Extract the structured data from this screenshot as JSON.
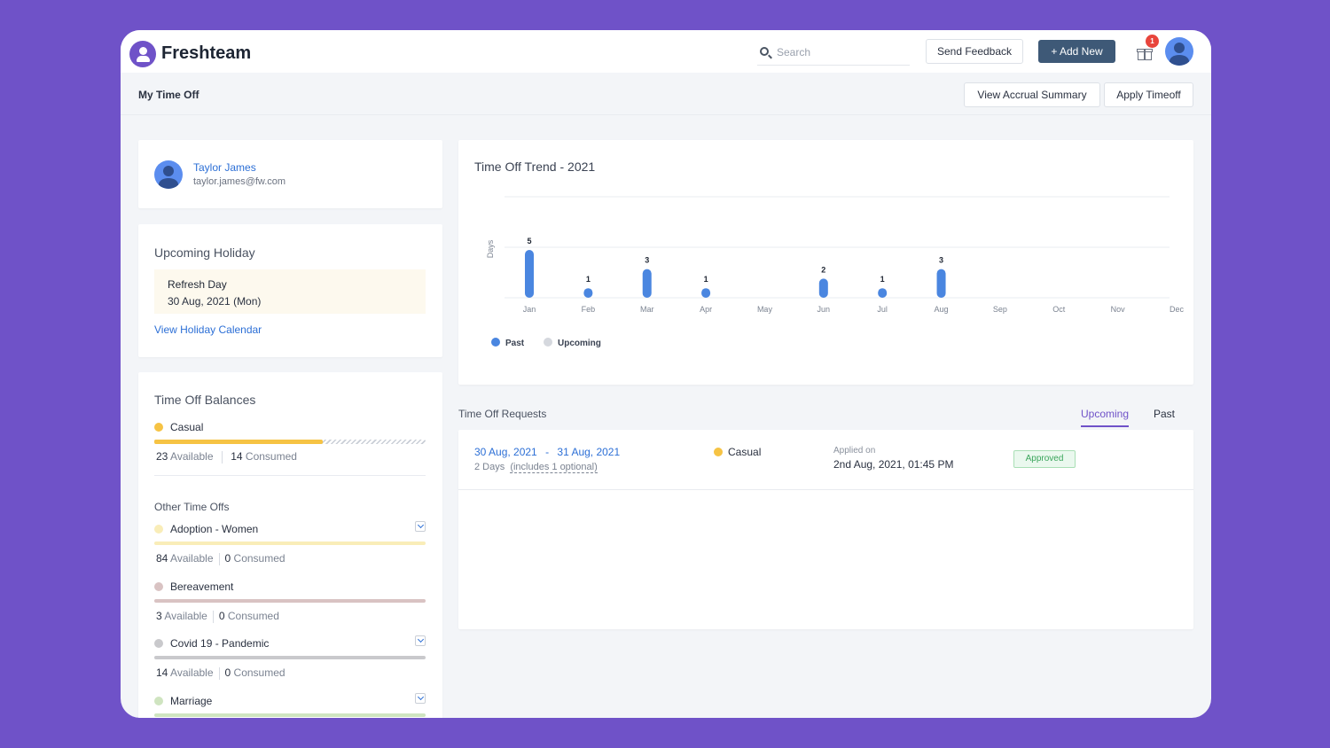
{
  "app": {
    "brand": "Freshteam"
  },
  "header": {
    "search_placeholder": "Search",
    "send_feedback": "Send Feedback",
    "add_new": "+ Add New",
    "notification_count": "1"
  },
  "subheader": {
    "title": "My Time Off",
    "view_accrual": "View Accrual Summary",
    "apply_timeoff": "Apply Timeoff"
  },
  "profile": {
    "name": "Taylor James",
    "email": "taylor.james@fw.com"
  },
  "holiday": {
    "title": "Upcoming Holiday",
    "name": "Refresh Day",
    "date": "30 Aug, 2021 (Mon)",
    "link": "View Holiday Calendar"
  },
  "balances": {
    "title": "Time Off Balances",
    "casual": {
      "label": "Casual",
      "available": "23",
      "available_label": "Available",
      "consumed": "14",
      "consumed_label": "Consumed",
      "available_fraction": 0.62,
      "color": "#f6c344"
    },
    "other_title": "Other Time Offs",
    "others": [
      {
        "label": "Adoption - Women",
        "available": "84",
        "consumed": "0",
        "color": "#f9edb8"
      },
      {
        "label": "Bereavement",
        "available": "3",
        "consumed": "0",
        "color": "#d9c3c3"
      },
      {
        "label": "Covid 19 - Pandemic",
        "available": "14",
        "consumed": "0",
        "color": "#c9c9cc"
      },
      {
        "label": "Marriage",
        "available": "",
        "consumed": "",
        "color": "#cfe4c0"
      }
    ],
    "available_label": "Available",
    "consumed_label": "Consumed"
  },
  "chart_data": {
    "type": "bar",
    "title": "Time Off Trend - 2021",
    "ylabel": "Days",
    "xlabel": "",
    "categories": [
      "Jan",
      "Feb",
      "Mar",
      "Apr",
      "May",
      "Jun",
      "Jul",
      "Aug",
      "Sep",
      "Oct",
      "Nov",
      "Dec"
    ],
    "series": [
      {
        "name": "Past",
        "values": [
          5,
          1,
          3,
          1,
          0,
          2,
          1,
          3,
          0,
          0,
          0,
          0
        ],
        "color": "#4a86e0"
      },
      {
        "name": "Upcoming",
        "values": [
          0,
          0,
          0,
          0,
          0,
          0,
          0,
          0,
          0,
          0,
          0,
          0
        ],
        "color": "#d5d8de"
      }
    ],
    "ylim": [
      0,
      5
    ],
    "grid": true,
    "legend": "bottom-left"
  },
  "requests": {
    "title": "Time Off Requests",
    "tabs": [
      "Upcoming",
      "Past"
    ],
    "items": [
      {
        "start": "30 Aug, 2021",
        "end": "31 Aug, 2021",
        "dash": "-",
        "days": "2 Days",
        "optional": "(includes 1 optional)",
        "type": "Casual",
        "type_color": "#f6c344",
        "applied_label": "Applied on",
        "applied_on": "2nd Aug, 2021, 01:45 PM",
        "status": "Approved"
      }
    ]
  }
}
